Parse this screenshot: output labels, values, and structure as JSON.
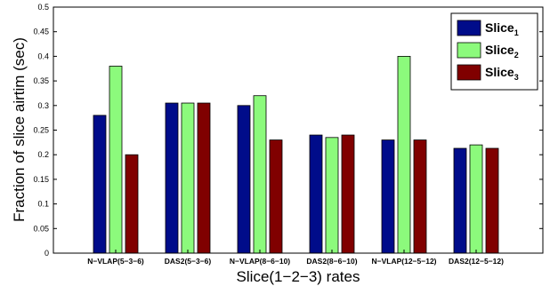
{
  "chart_data": {
    "type": "bar",
    "title": "",
    "xlabel": "Slice(1−2−3) rates",
    "ylabel": "Fraction of slice airtim (sec)",
    "ylim": [
      0,
      0.5
    ],
    "yticks": [
      "0",
      "0.05",
      "0.1",
      "0.15",
      "0.2",
      "0.25",
      "0.3",
      "0.35",
      "0.4",
      "0.45",
      "0.5"
    ],
    "grid": false,
    "legend_position": "top-right",
    "categories": [
      "N−VLAP(5−3−6)",
      "DAS2(5−3−6)",
      "N−VLAP(8−6−10)",
      "DAS2(8−6−10)",
      "N−VLAP(12−5−12)",
      "DAS2(12−5−12)"
    ],
    "series": [
      {
        "name": "Slice",
        "subscript": "1",
        "color": "#000c8a",
        "values": [
          0.28,
          0.305,
          0.3,
          0.24,
          0.23,
          0.213
        ]
      },
      {
        "name": "Slice",
        "subscript": "2",
        "color": "#8cfa7c",
        "values": [
          0.38,
          0.305,
          0.32,
          0.235,
          0.4,
          0.22
        ]
      },
      {
        "name": "Slice",
        "subscript": "3",
        "color": "#800000",
        "values": [
          0.2,
          0.305,
          0.23,
          0.24,
          0.23,
          0.213
        ]
      }
    ]
  }
}
